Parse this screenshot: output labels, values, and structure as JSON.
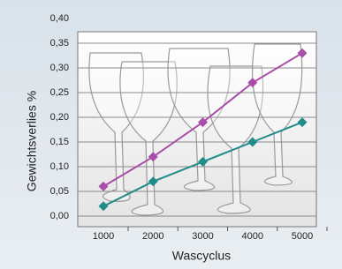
{
  "chart_data": {
    "type": "line",
    "ylabel": "Gewichtsverlies %",
    "xlabel": "Wascyclus",
    "categories": [
      "1000",
      "2000",
      "3000",
      "4000",
      "5000"
    ],
    "series": [
      {
        "color": "#a84ea8",
        "values": [
          0.06,
          0.12,
          0.19,
          0.27,
          0.33
        ]
      },
      {
        "color": "#1f8c8a",
        "values": [
          0.02,
          0.07,
          0.11,
          0.15,
          0.19
        ]
      }
    ],
    "ylim": [
      0,
      0.4
    ],
    "yticks": [
      {
        "value": 0,
        "label": "0,00"
      },
      {
        "value": 0.05,
        "label": "0,05"
      },
      {
        "value": 0.1,
        "label": "0,10"
      },
      {
        "value": 0.15,
        "label": "0,15"
      },
      {
        "value": 0.2,
        "label": "0,20"
      },
      {
        "value": 0.25,
        "label": "0,25"
      },
      {
        "value": 0.3,
        "label": "0,30"
      },
      {
        "value": 0.35,
        "label": "0,35"
      },
      {
        "value": 0.4,
        "label": "0,40"
      }
    ],
    "grid": true
  }
}
